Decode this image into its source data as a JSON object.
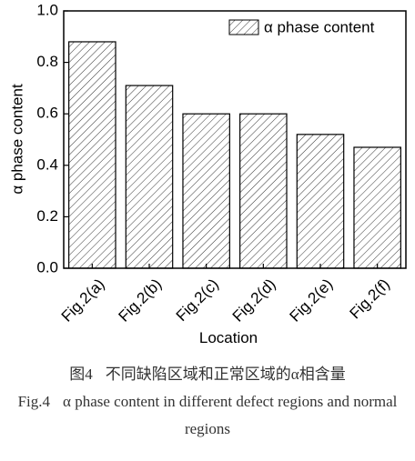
{
  "chart_data": {
    "type": "bar",
    "categories": [
      "Fig.2(a)",
      "Fig.2(b)",
      "Fig.2(c)",
      "Fig.2(d)",
      "Fig.2(e)",
      "Fig.2(f)"
    ],
    "series": [
      {
        "name": "α phase content",
        "color": "#000000",
        "values": [
          0.88,
          0.71,
          0.6,
          0.6,
          0.52,
          0.47
        ]
      }
    ],
    "x_label": "Location",
    "y_label": "α phase content",
    "ylim": [
      0,
      1
    ],
    "yticks": [
      {
        "value": 0,
        "label": "0.0"
      },
      0.2,
      0.4,
      0.6,
      0.8,
      {
        "value": 1,
        "label": "1.0"
      }
    ],
    "legend": "top-right",
    "hatch": true
  },
  "caption_cn": {
    "label": "图4",
    "text": "不同缺陷区域和正常区域的α相含量"
  },
  "caption_en": {
    "label": "Fig.4",
    "text": "α phase content in different defect regions and normal regions"
  }
}
